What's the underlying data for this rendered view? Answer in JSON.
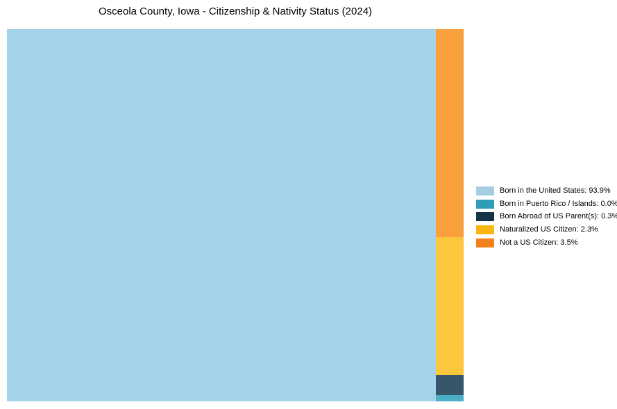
{
  "title": "Osceola County, Iowa - Citizenship & Nativity Status (2024)",
  "chart_data": {
    "type": "treemap",
    "title": "Osceola County, Iowa - Citizenship & Nativity Status (2024)",
    "unit": "%",
    "legend_position": "right",
    "items": [
      {
        "label": "Born in the United States",
        "value": 93.9,
        "tile_color": "#A4D3E9",
        "legend_color": "#A6CEE3"
      },
      {
        "label": "Born in Puerto Rico / Islands",
        "value": 0.0,
        "tile_color": "#4DAFC6",
        "legend_color": "#2E9DB7"
      },
      {
        "label": "Born Abroad of US Parent(s)",
        "value": 0.3,
        "tile_color": "#36566A",
        "legend_color": "#143349"
      },
      {
        "label": "Naturalized US Citizen",
        "value": 2.3,
        "tile_color": "#FDC73D",
        "legend_color": "#F9B612"
      },
      {
        "label": "Not a US Citizen",
        "value": 3.5,
        "tile_color": "#F99F3B",
        "legend_color": "#F2821D"
      }
    ]
  },
  "legend": {
    "items": [
      {
        "text": "Born in the United States: 93.9%",
        "color": "#A6CEE3"
      },
      {
        "text": "Born in Puerto Rico / Islands: 0.0%",
        "color": "#2E9DB7"
      },
      {
        "text": "Born Abroad of US Parent(s): 0.3%",
        "color": "#143349"
      },
      {
        "text": "Naturalized US Citizen: 2.3%",
        "color": "#F9B612"
      },
      {
        "text": "Not a US Citizen: 3.5%",
        "color": "#F2821D"
      }
    ]
  }
}
